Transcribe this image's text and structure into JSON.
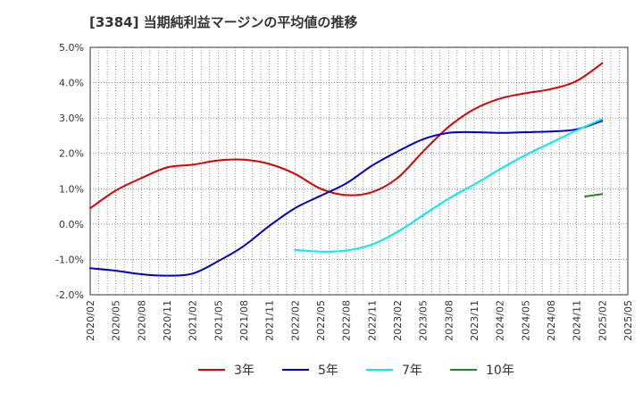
{
  "chart_data": {
    "type": "line",
    "title": "[3384]  当期純利益マージンの平均値の推移",
    "xlabel": "",
    "ylabel": "",
    "ylim": [
      -2.0,
      5.0
    ],
    "yticks": [
      5.0,
      4.0,
      3.0,
      2.0,
      1.0,
      0.0,
      -1.0,
      -2.0
    ],
    "ytick_labels": [
      "5.0%",
      "4.0%",
      "3.0%",
      "2.0%",
      "1.0%",
      "0.0%",
      "-1.0%",
      "-2.0%"
    ],
    "xticks": [
      "2020/02",
      "2020/05",
      "2020/08",
      "2020/11",
      "2021/02",
      "2021/05",
      "2021/08",
      "2021/11",
      "2022/02",
      "2022/05",
      "2022/08",
      "2022/11",
      "2023/02",
      "2023/05",
      "2023/08",
      "2023/11",
      "2024/02",
      "2024/05",
      "2024/08",
      "2024/11",
      "2025/02",
      "2025/05"
    ],
    "grid": true,
    "legend_position": "bottom",
    "series": [
      {
        "name": "3年",
        "color": "#dd0000",
        "points": [
          [
            "2020/02",
            0.45
          ],
          [
            "2020/05",
            0.95
          ],
          [
            "2020/08",
            1.3
          ],
          [
            "2020/11",
            1.6
          ],
          [
            "2021/02",
            1.68
          ],
          [
            "2021/05",
            1.8
          ],
          [
            "2021/08",
            1.82
          ],
          [
            "2021/11",
            1.7
          ],
          [
            "2022/02",
            1.42
          ],
          [
            "2022/05",
            1.0
          ],
          [
            "2022/08",
            0.82
          ],
          [
            "2022/11",
            0.9
          ],
          [
            "2023/02",
            1.3
          ],
          [
            "2023/05",
            2.05
          ],
          [
            "2023/08",
            2.75
          ],
          [
            "2023/11",
            3.25
          ],
          [
            "2024/02",
            3.55
          ],
          [
            "2024/05",
            3.7
          ],
          [
            "2024/08",
            3.82
          ],
          [
            "2024/11",
            4.05
          ],
          [
            "2025/02",
            4.55
          ]
        ]
      },
      {
        "name": "5年",
        "color": "#0000cc",
        "points": [
          [
            "2020/02",
            -1.25
          ],
          [
            "2020/05",
            -1.32
          ],
          [
            "2020/08",
            -1.42
          ],
          [
            "2020/11",
            -1.46
          ],
          [
            "2021/02",
            -1.4
          ],
          [
            "2021/05",
            -1.05
          ],
          [
            "2021/08",
            -0.62
          ],
          [
            "2021/11",
            -0.05
          ],
          [
            "2022/02",
            0.45
          ],
          [
            "2022/05",
            0.8
          ],
          [
            "2022/08",
            1.15
          ],
          [
            "2022/11",
            1.65
          ],
          [
            "2023/02",
            2.05
          ],
          [
            "2023/05",
            2.4
          ],
          [
            "2023/08",
            2.58
          ],
          [
            "2023/11",
            2.6
          ],
          [
            "2024/02",
            2.58
          ],
          [
            "2024/05",
            2.6
          ],
          [
            "2024/08",
            2.62
          ],
          [
            "2024/11",
            2.68
          ],
          [
            "2025/02",
            2.92
          ]
        ]
      },
      {
        "name": "7年",
        "color": "#00eeee",
        "points": [
          [
            "2022/02",
            -0.73
          ],
          [
            "2022/05",
            -0.78
          ],
          [
            "2022/08",
            -0.75
          ],
          [
            "2022/11",
            -0.58
          ],
          [
            "2023/02",
            -0.22
          ],
          [
            "2023/05",
            0.25
          ],
          [
            "2023/08",
            0.72
          ],
          [
            "2023/11",
            1.12
          ],
          [
            "2024/02",
            1.55
          ],
          [
            "2024/05",
            1.95
          ],
          [
            "2024/08",
            2.3
          ],
          [
            "2024/11",
            2.65
          ],
          [
            "2025/02",
            2.97
          ]
        ]
      },
      {
        "name": "10年",
        "color": "#228822",
        "points": [
          [
            "2024/12",
            0.78
          ],
          [
            "2025/02",
            0.85
          ]
        ]
      }
    ]
  }
}
